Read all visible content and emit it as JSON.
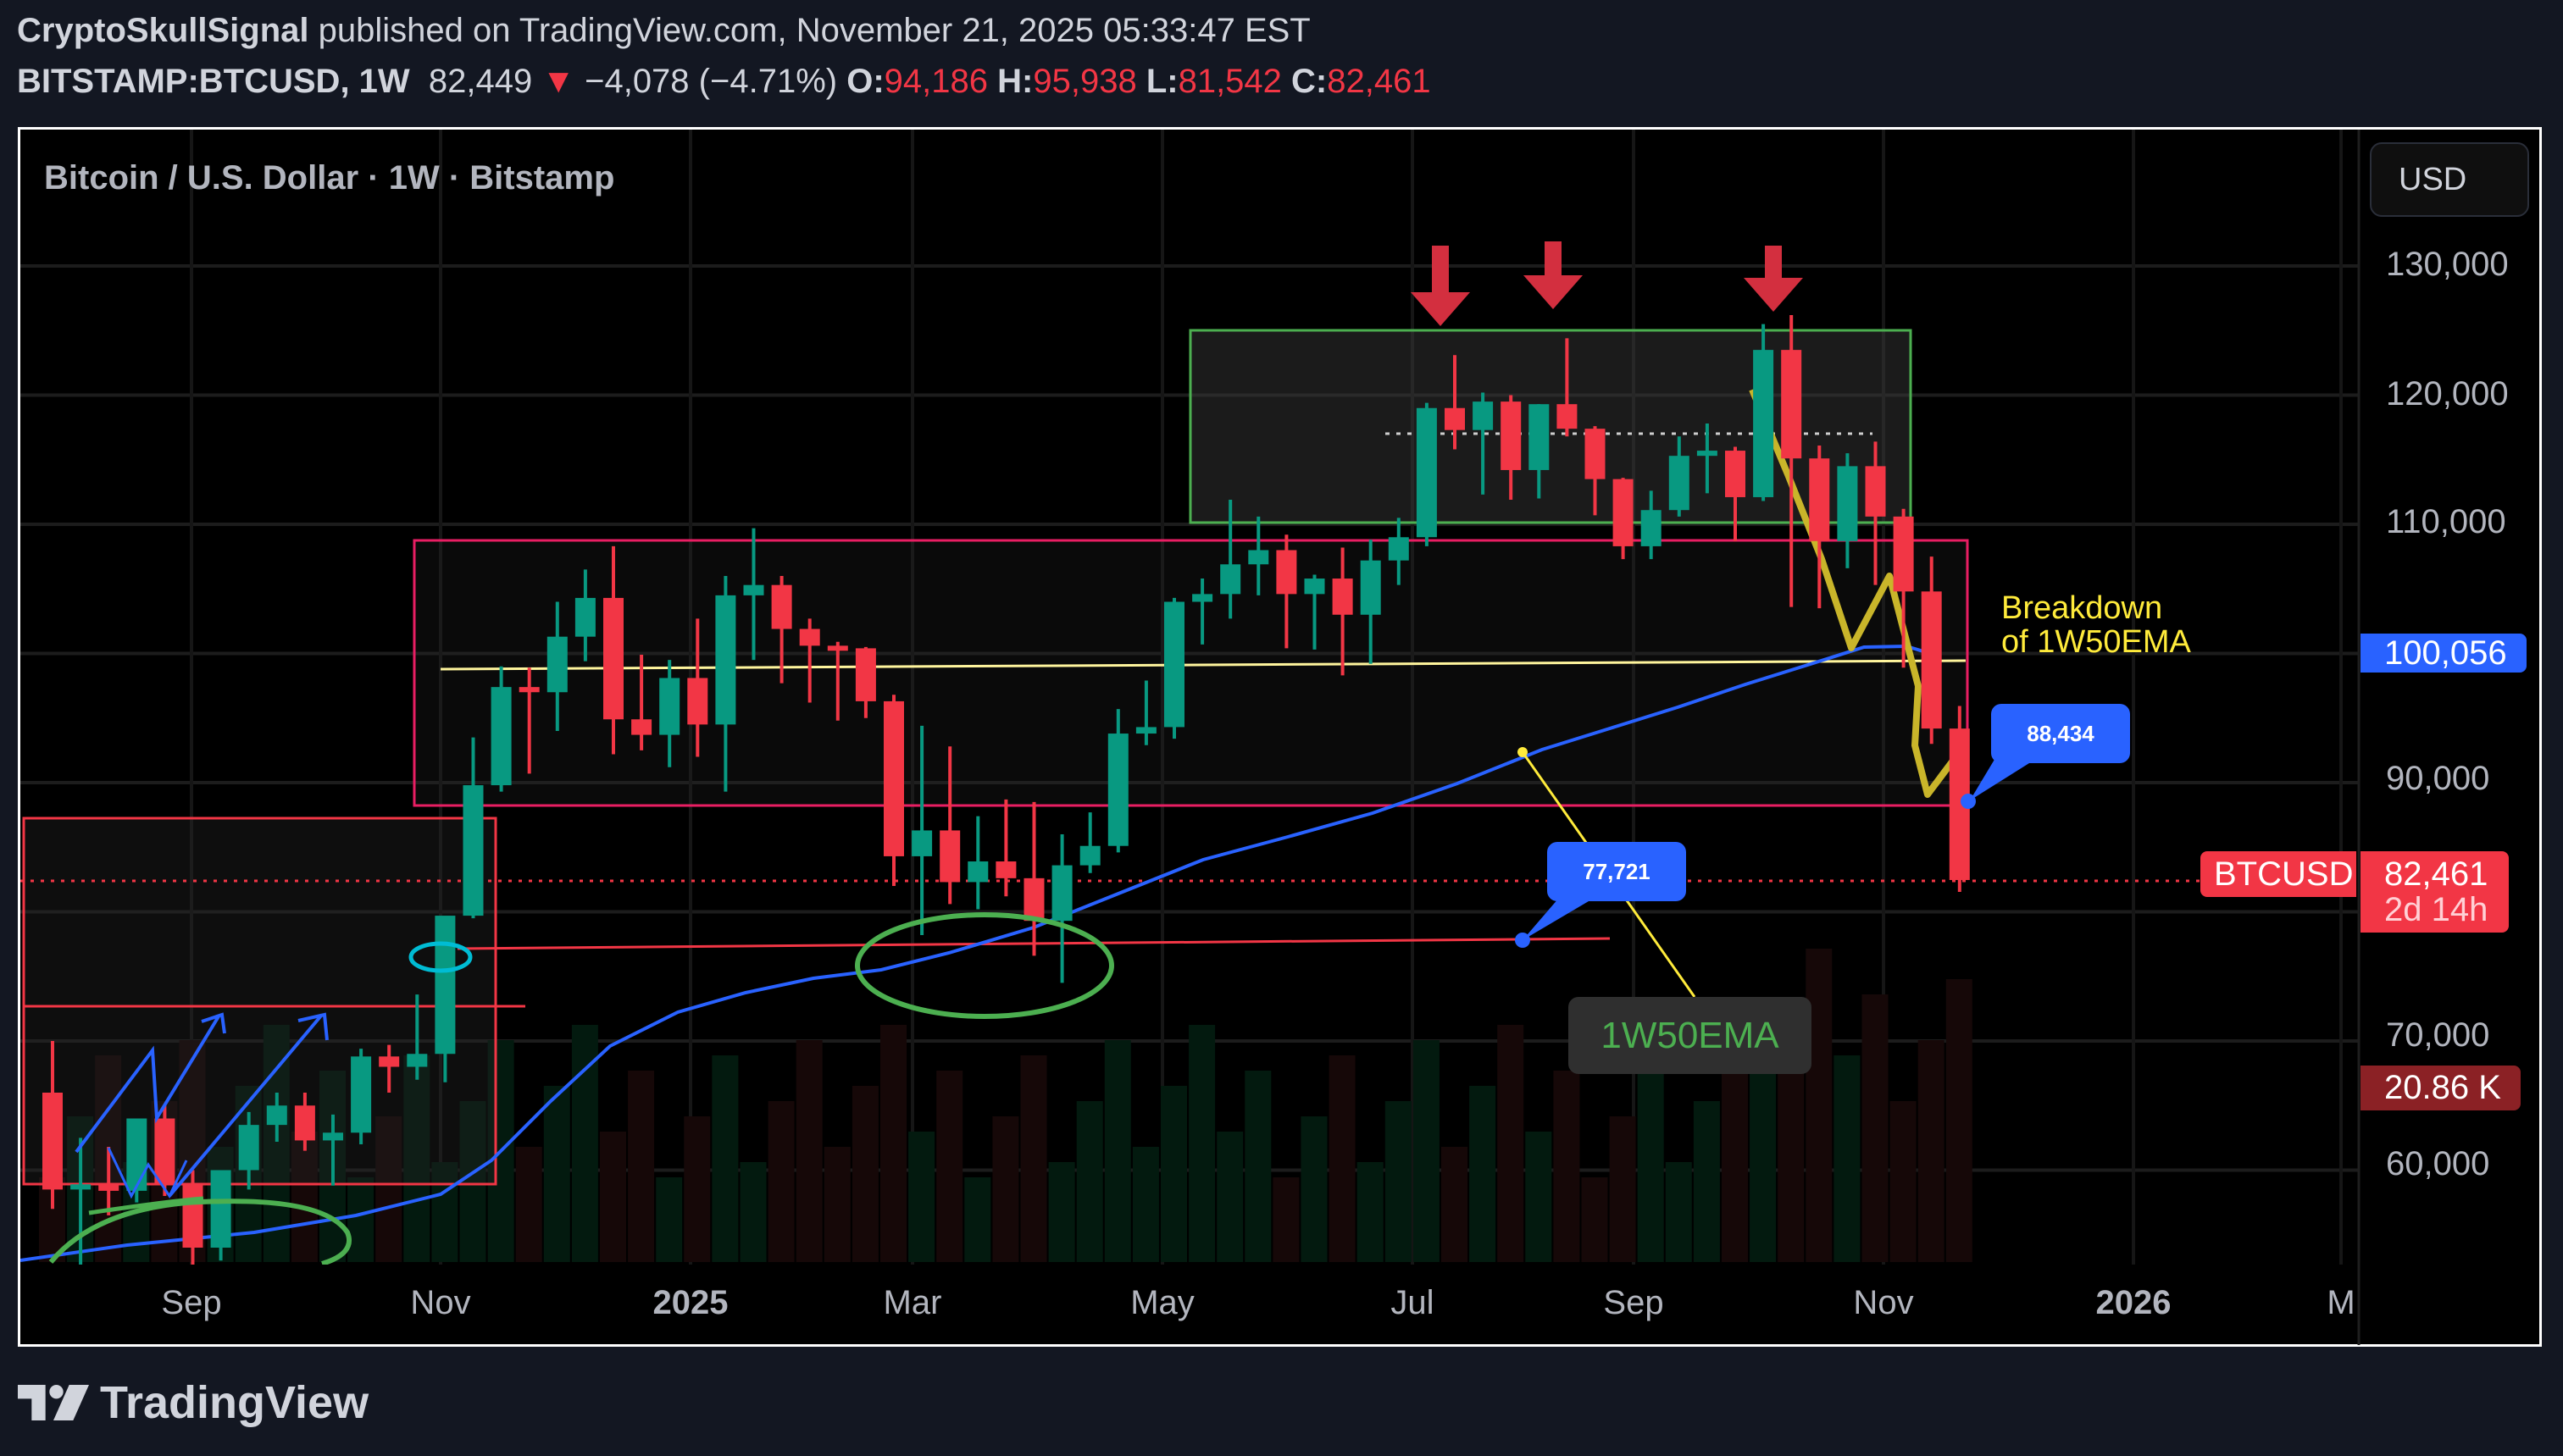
{
  "header": {
    "author": "CryptoSkullSignal",
    "published_text": "published on TradingView.com, November 21, 2025 05:33:47 EST",
    "symbol": "BITSTAMP:BTCUSD, 1W",
    "last": "82,449",
    "change_arrow": "▼",
    "change": "−4,078 (−4.71%)",
    "o_label": "O:",
    "o": "94,186",
    "h_label": "H:",
    "h": "95,938",
    "l_label": "L:",
    "l": "81,542",
    "c_label": "C:",
    "c": "82,461"
  },
  "chart_title": "Bitcoin / U.S. Dollar · 1W · Bitstamp",
  "currency_button": "USD",
  "price_axis": {
    "ticks": [
      "130,000",
      "120,000",
      "110,000",
      "90,000",
      "70,000",
      "60,000"
    ],
    "ema_tag": "100,056",
    "symbol_tag": "BTCUSD",
    "price_tag": "82,461",
    "countdown": "2d 14h",
    "volume_tag": "20.86 K"
  },
  "time_axis": {
    "ticks": [
      "Sep",
      "Nov",
      "2025",
      "Mar",
      "May",
      "Jul",
      "Sep",
      "Nov",
      "2026",
      "M"
    ]
  },
  "annotations": {
    "breakdown_line1": "Breakdown",
    "breakdown_line2": "of 1W50EMA",
    "callout_high": "88,434",
    "callout_low": "77,721",
    "ema_label": "1W50EMA"
  },
  "footer": {
    "brand": "TradingView"
  },
  "colors": {
    "up": "#089981",
    "down": "#f23645",
    "ema": "#2962ff",
    "annotation_yellow": "#ffeb3b",
    "range_box": "#e91e63",
    "top_box": "#4caf50",
    "background": "#000000",
    "page": "#131722"
  },
  "chart_data": {
    "type": "candlestick",
    "title": "Bitcoin / U.S. Dollar · 1W · Bitstamp",
    "xlabel": "",
    "ylabel": "USD",
    "ylim": [
      53000,
      137000
    ],
    "x_ticks": [
      "Sep",
      "Nov",
      "2025",
      "Mar",
      "May",
      "Jul",
      "Sep",
      "Nov",
      "2026",
      "M"
    ],
    "y_ticks": [
      60000,
      70000,
      90000,
      110000,
      120000,
      130000
    ],
    "grid": true,
    "series": [
      {
        "name": "BTCUSD 1W",
        "ohlc": [
          [
            66000,
            70000,
            57000,
            58500
          ],
          [
            58500,
            62500,
            49000,
            58900
          ],
          [
            58900,
            61800,
            56500,
            58400
          ],
          [
            58400,
            62500,
            57500,
            64000
          ],
          [
            64000,
            65000,
            58000,
            59000
          ],
          [
            59000,
            60000,
            52500,
            54000
          ],
          [
            54000,
            58500,
            53000,
            60000
          ],
          [
            60000,
            64500,
            58500,
            63500
          ],
          [
            63500,
            66000,
            62200,
            65000
          ],
          [
            65000,
            66000,
            61500,
            62300
          ],
          [
            62300,
            64300,
            58800,
            62900
          ],
          [
            62900,
            69400,
            62000,
            68800
          ],
          [
            68800,
            69700,
            66000,
            68000
          ],
          [
            68000,
            73600,
            67000,
            69000
          ],
          [
            69000,
            77000,
            66800,
            79700
          ],
          [
            79700,
            93500,
            79500,
            89800
          ],
          [
            89800,
            99000,
            89300,
            97400
          ],
          [
            97400,
            98900,
            90700,
            97000
          ],
          [
            97000,
            104000,
            94000,
            101300
          ],
          [
            101300,
            106500,
            99400,
            104300
          ],
          [
            104300,
            108300,
            92200,
            94900
          ],
          [
            94900,
            99900,
            92500,
            93700
          ],
          [
            93700,
            99500,
            91200,
            98100
          ],
          [
            98100,
            102700,
            92000,
            94500
          ],
          [
            94500,
            106000,
            89300,
            104500
          ],
          [
            104500,
            109700,
            99500,
            105300
          ],
          [
            105300,
            106000,
            97700,
            101900
          ],
          [
            101900,
            102700,
            96200,
            100600
          ],
          [
            100600,
            100900,
            94800,
            100400
          ],
          [
            100400,
            100500,
            95000,
            96300
          ],
          [
            96300,
            96800,
            82000,
            84300
          ],
          [
            84300,
            94400,
            78200,
            86300
          ],
          [
            86300,
            92800,
            80600,
            82300
          ],
          [
            82300,
            87400,
            80200,
            83900
          ],
          [
            83900,
            88700,
            81200,
            82600
          ],
          [
            82600,
            88500,
            76600,
            79300
          ],
          [
            79300,
            86000,
            74500,
            83600
          ],
          [
            83600,
            87700,
            83000,
            85100
          ],
          [
            85100,
            95700,
            84600,
            93800
          ],
          [
            93800,
            97900,
            92900,
            94300
          ],
          [
            94300,
            104300,
            93400,
            104000
          ],
          [
            104000,
            105800,
            100700,
            104600
          ],
          [
            104600,
            111900,
            102700,
            106900
          ],
          [
            106900,
            110600,
            104500,
            108000
          ],
          [
            108000,
            109200,
            100400,
            104600
          ],
          [
            104600,
            106100,
            100300,
            105800
          ],
          [
            105800,
            108200,
            98300,
            103000
          ],
          [
            103000,
            108800,
            99200,
            107200
          ],
          [
            107200,
            110500,
            105300,
            109000
          ],
          [
            109000,
            119400,
            108300,
            119000
          ],
          [
            119000,
            123100,
            115800,
            117300
          ],
          [
            117300,
            120200,
            112300,
            119500
          ],
          [
            119500,
            120000,
            111900,
            114200
          ],
          [
            114200,
            119300,
            112000,
            119300
          ],
          [
            119300,
            124400,
            116800,
            117400
          ],
          [
            117400,
            117600,
            110700,
            113500
          ],
          [
            113500,
            113600,
            107300,
            108300
          ],
          [
            108300,
            112600,
            107300,
            111100
          ],
          [
            111100,
            116800,
            110600,
            115300
          ],
          [
            115300,
            117800,
            112400,
            115700
          ],
          [
            115700,
            116000,
            108700,
            112100
          ],
          [
            112100,
            125500,
            111800,
            123500
          ],
          [
            123500,
            126200,
            103600,
            115100
          ],
          [
            115100,
            116100,
            103500,
            108700
          ],
          [
            108700,
            115500,
            106600,
            114500
          ],
          [
            114500,
            116400,
            105300,
            110600
          ],
          [
            110600,
            111200,
            98900,
            104800
          ],
          [
            104800,
            107500,
            93000,
            94186
          ],
          [
            94186,
            95938,
            81542,
            82461
          ]
        ]
      },
      {
        "name": "1W50EMA",
        "note": "blue line rising from ~54,000 (Aug 2024) to ~101,000 (Oct 2025), last 100,056"
      }
    ],
    "annotations": [
      {
        "type": "text",
        "text": "Breakdown of 1W50EMA"
      },
      {
        "type": "callout",
        "text": "88,434"
      },
      {
        "type": "callout",
        "text": "77,721"
      },
      {
        "type": "label",
        "text": "1W50EMA"
      },
      {
        "type": "range_box",
        "from": 88300,
        "to": 109000
      },
      {
        "type": "range_box",
        "from": 110200,
        "to": 125000
      },
      {
        "type": "hline",
        "value": 99400,
        "color": "yellow"
      },
      {
        "type": "arrows_down",
        "count": 3
      }
    ]
  }
}
